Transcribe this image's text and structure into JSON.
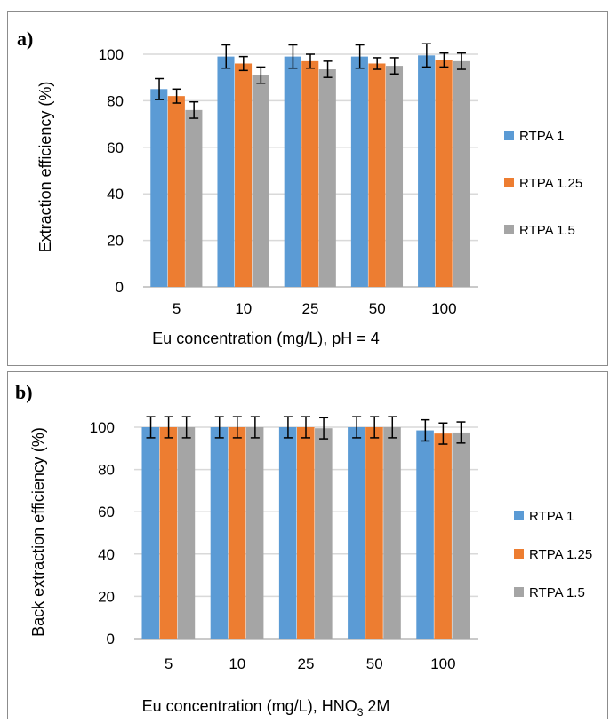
{
  "chart_data": [
    {
      "panel_label": "a)",
      "type": "bar",
      "categories": [
        "5",
        "10",
        "25",
        "50",
        "100"
      ],
      "series": [
        {
          "name": "RTPA 1",
          "color": "#5b9bd5",
          "values": [
            85,
            99,
            99,
            99,
            99.5
          ],
          "errors": [
            4.5,
            5,
            5,
            5,
            5
          ]
        },
        {
          "name": "RTPA 1.25",
          "color": "#ed7d31",
          "values": [
            82,
            96,
            97,
            96,
            97.5
          ],
          "errors": [
            3,
            3,
            3,
            2.5,
            3
          ]
        },
        {
          "name": "RTPA 1.5",
          "color": "#a5a5a5",
          "values": [
            76,
            91,
            93.5,
            95,
            97
          ],
          "errors": [
            3.5,
            3.5,
            3.5,
            3.5,
            3.5
          ]
        }
      ],
      "xlabel": "Eu concentration (mg/L), pH = 4",
      "ylabel": "Extraction efficiency (%)",
      "ylim": [
        0,
        100
      ],
      "yticks": [
        "0",
        "20",
        "40",
        "60",
        "80",
        "100"
      ],
      "grid": true,
      "legend": "right"
    },
    {
      "panel_label": "b)",
      "type": "bar",
      "categories": [
        "5",
        "10",
        "25",
        "50",
        "100"
      ],
      "series": [
        {
          "name": "RTPA 1",
          "color": "#5b9bd5",
          "values": [
            100,
            100,
            100,
            100,
            98.5
          ],
          "errors": [
            5,
            5,
            5,
            5,
            5
          ]
        },
        {
          "name": "RTPA 1.25",
          "color": "#ed7d31",
          "values": [
            100,
            100,
            100,
            100,
            97
          ],
          "errors": [
            5,
            5,
            5,
            5,
            5
          ]
        },
        {
          "name": "RTPA 1.5",
          "color": "#a5a5a5",
          "values": [
            100,
            100,
            99.5,
            100,
            97.5
          ],
          "errors": [
            5,
            5,
            5,
            5,
            5
          ]
        }
      ],
      "xlabel_main": "Eu concentration (mg/L), HNO",
      "xlabel_sub": "3",
      "xlabel_end": " 2M",
      "ylabel": "Back extraction efficiency (%)",
      "ylim": [
        0,
        100
      ],
      "yticks": [
        "0",
        "20",
        "40",
        "60",
        "80",
        "100"
      ],
      "grid": true,
      "legend": "right"
    }
  ]
}
